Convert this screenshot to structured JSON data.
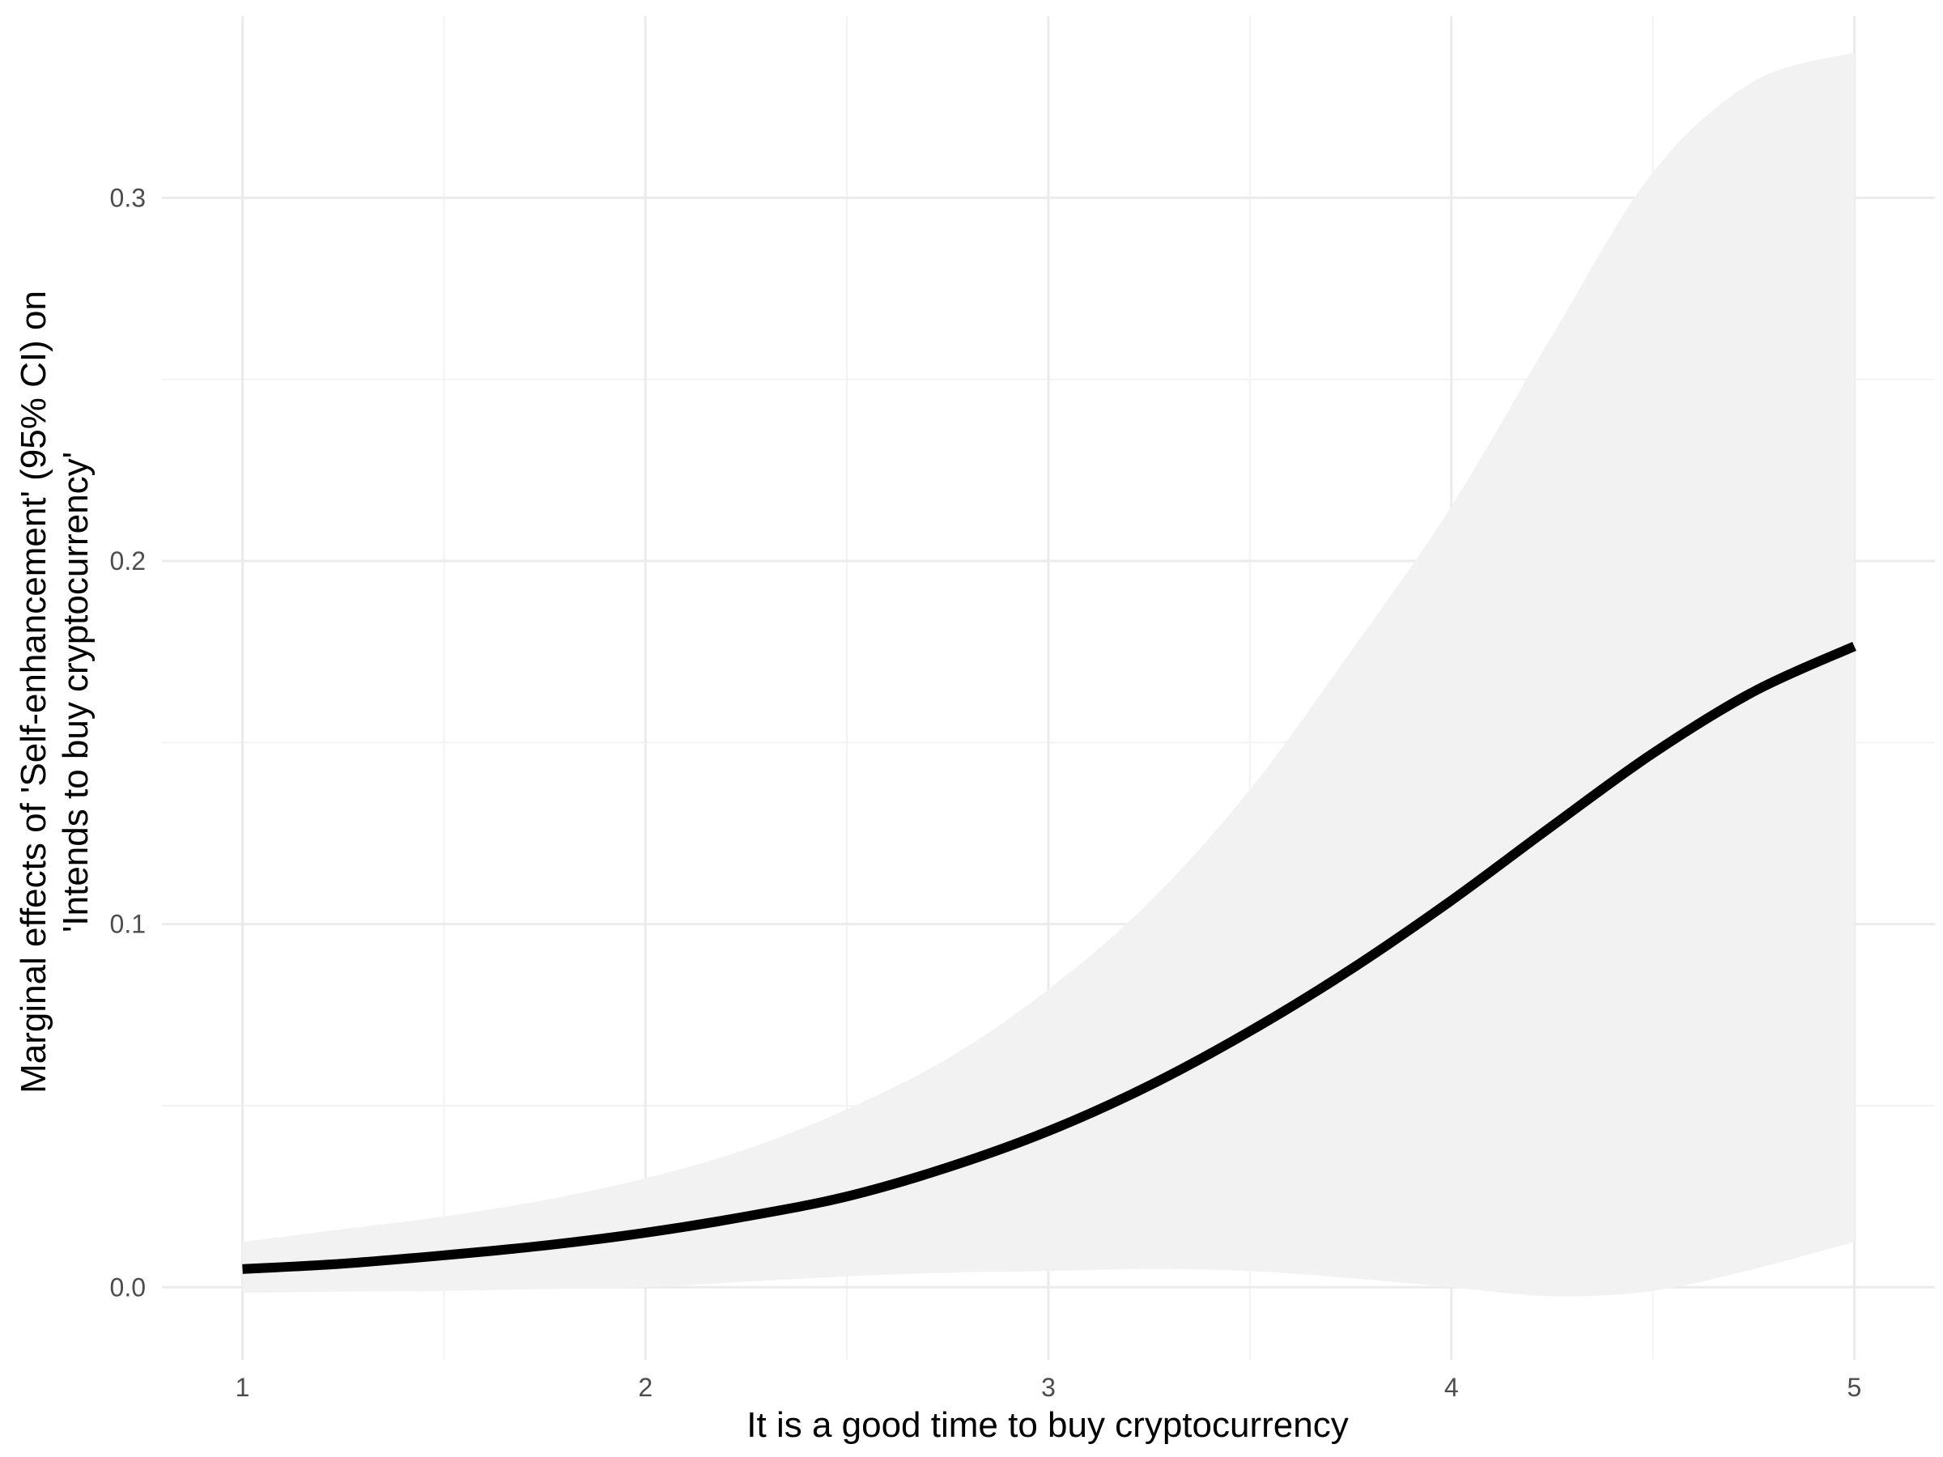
{
  "chart_data": {
    "type": "line",
    "title": "",
    "xlabel": "It is a good time to buy cryptocurrency",
    "ylabel_lines": [
      "Marginal effects of 'Self-enhancement' (95% CI) on",
      "'Intends to buy cryptocurrency'"
    ],
    "xlim": [
      0.8,
      5.2
    ],
    "ylim": [
      -0.02,
      0.35
    ],
    "x_ticks": [
      1,
      2,
      3,
      4,
      5
    ],
    "x_tick_labels": [
      "1",
      "2",
      "3",
      "4",
      "5"
    ],
    "y_ticks": [
      0.0,
      0.1,
      0.2,
      0.3
    ],
    "y_tick_labels": [
      "0.0",
      "0.1",
      "0.2",
      "0.3"
    ],
    "grid": true,
    "series": [
      {
        "name": "marginal effect",
        "color": "#000000",
        "x": [
          1.0,
          1.25,
          1.5,
          1.75,
          2.0,
          2.25,
          2.5,
          2.75,
          3.0,
          3.25,
          3.5,
          3.75,
          4.0,
          4.25,
          4.5,
          4.75,
          5.0
        ],
        "y": [
          0.005,
          0.0065,
          0.0088,
          0.0115,
          0.015,
          0.0195,
          0.025,
          0.033,
          0.043,
          0.0555,
          0.0705,
          0.0875,
          0.1065,
          0.127,
          0.147,
          0.164,
          0.1765
        ],
        "ci_lower": [
          -0.0015,
          -0.0012,
          -0.001,
          -0.0005,
          0.0,
          0.0015,
          0.003,
          0.004,
          0.0045,
          0.005,
          0.0045,
          0.0025,
          0.0,
          -0.0025,
          -0.001,
          0.005,
          0.0125
        ],
        "ci_upper": [
          0.0125,
          0.016,
          0.0195,
          0.024,
          0.03,
          0.038,
          0.049,
          0.063,
          0.082,
          0.106,
          0.137,
          0.175,
          0.215,
          0.262,
          0.307,
          0.332,
          0.34
        ]
      }
    ],
    "ribbon_color": "#f2f2f2",
    "grid_major_color": "#ebebeb",
    "grid_minor_color": "#f3f3f3"
  }
}
